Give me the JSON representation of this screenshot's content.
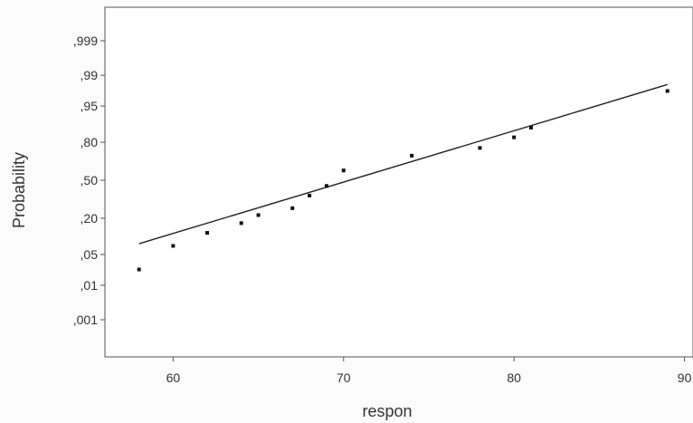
{
  "chart_data": {
    "type": "scatter",
    "title": "",
    "xlabel": "respon",
    "ylabel": "Probability",
    "scale": "normal-probability",
    "xlim": [
      56,
      90.5
    ],
    "x_ticks": [
      {
        "value": 60,
        "label": "60"
      },
      {
        "value": 70,
        "label": "70"
      },
      {
        "value": 80,
        "label": "80"
      },
      {
        "value": 90,
        "label": "90"
      }
    ],
    "y_ticks": [
      {
        "value": 0.999,
        "label": ",999"
      },
      {
        "value": 0.99,
        "label": ",99"
      },
      {
        "value": 0.95,
        "label": ",95"
      },
      {
        "value": 0.8,
        "label": ",80"
      },
      {
        "value": 0.5,
        "label": ",50"
      },
      {
        "value": 0.2,
        "label": ",20"
      },
      {
        "value": 0.05,
        "label": ",05"
      },
      {
        "value": 0.01,
        "label": ",01"
      },
      {
        "value": 0.001,
        "label": ",001"
      }
    ],
    "points": [
      {
        "x": 58,
        "p": 0.024
      },
      {
        "x": 60,
        "p": 0.073
      },
      {
        "x": 62,
        "p": 0.122
      },
      {
        "x": 64,
        "p": 0.171
      },
      {
        "x": 65,
        "p": 0.22
      },
      {
        "x": 67,
        "p": 0.268
      },
      {
        "x": 68,
        "p": 0.367
      },
      {
        "x": 69,
        "p": 0.45
      },
      {
        "x": 70,
        "p": 0.586
      },
      {
        "x": 74,
        "p": 0.707
      },
      {
        "x": 78,
        "p": 0.763
      },
      {
        "x": 80,
        "p": 0.829
      },
      {
        "x": 81,
        "p": 0.878
      },
      {
        "x": 89,
        "p": 0.976
      }
    ],
    "fit_line": [
      {
        "x": 58,
        "p": 0.08
      },
      {
        "x": 89,
        "p": 0.983
      }
    ]
  }
}
